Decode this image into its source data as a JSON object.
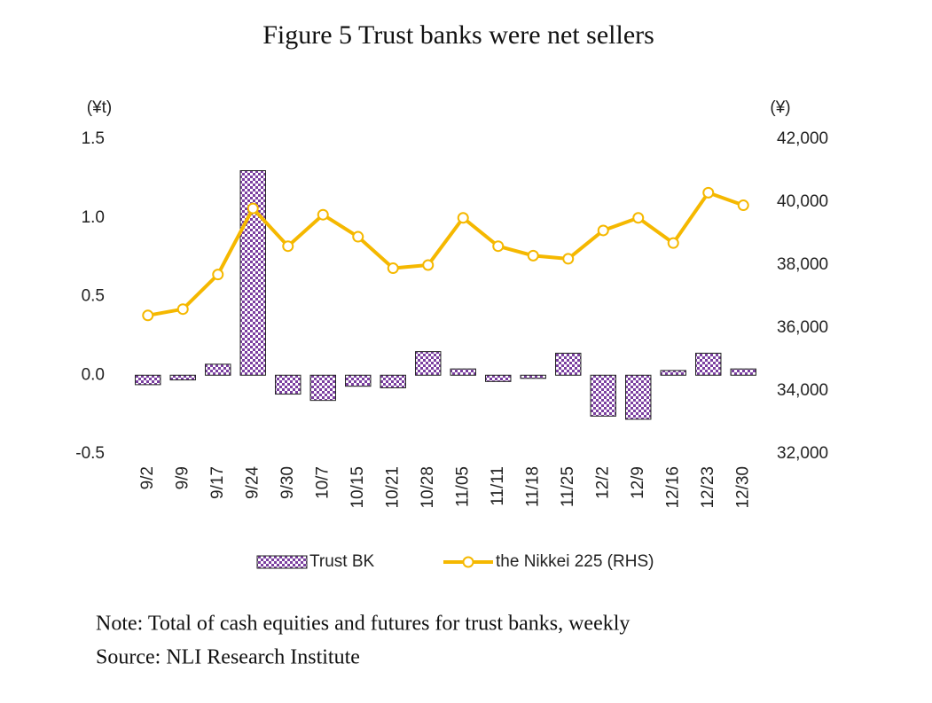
{
  "chart_data": {
    "type": "bar",
    "title": "Figure 5 Trust banks were net sellers",
    "y_label": "(¥t)",
    "y2_label": "(¥)",
    "categories": [
      "9/2",
      "9/9",
      "9/17",
      "9/24",
      "9/30",
      "10/7",
      "10/15",
      "10/21",
      "10/28",
      "11/05",
      "11/11",
      "11/18",
      "11/25",
      "12/2",
      "12/9",
      "12/16",
      "12/23",
      "12/30"
    ],
    "series": [
      {
        "name": "Trust BK",
        "type": "bar",
        "color": "#7b3fa0",
        "axis": "y",
        "values": [
          -0.06,
          -0.03,
          0.07,
          1.3,
          -0.12,
          -0.16,
          -0.07,
          -0.08,
          0.15,
          0.04,
          -0.04,
          -0.02,
          0.14,
          -0.26,
          -0.28,
          0.03,
          0.14,
          0.04
        ]
      },
      {
        "name": "the Nikkei 225 (RHS)",
        "type": "line",
        "color": "#f5b800",
        "axis": "y2",
        "values": [
          36400,
          36600,
          37700,
          39800,
          38600,
          39600,
          38900,
          37900,
          38000,
          39500,
          38600,
          38300,
          38200,
          39100,
          39500,
          38700,
          40300,
          39900
        ]
      }
    ],
    "ylim": [
      -0.5,
      1.5
    ],
    "yticks": [
      -0.5,
      {
        "value": 0,
        "label": "0.0"
      },
      0.5,
      {
        "value": 1,
        "label": "1.0"
      },
      1.5
    ],
    "y2lim": [
      32000,
      42000
    ],
    "y2ticks": [
      {
        "value": 32000,
        "label": "32,000"
      },
      {
        "value": 34000,
        "label": "34,000"
      },
      {
        "value": 36000,
        "label": "36,000"
      },
      {
        "value": 38000,
        "label": "38,000"
      },
      {
        "value": 40000,
        "label": "40,000"
      },
      {
        "value": 42000,
        "label": "42,000"
      }
    ],
    "grid": false,
    "note": "Note: Total of cash equities and futures for trust banks, weekly",
    "source": "Source: NLI Research Institute"
  }
}
